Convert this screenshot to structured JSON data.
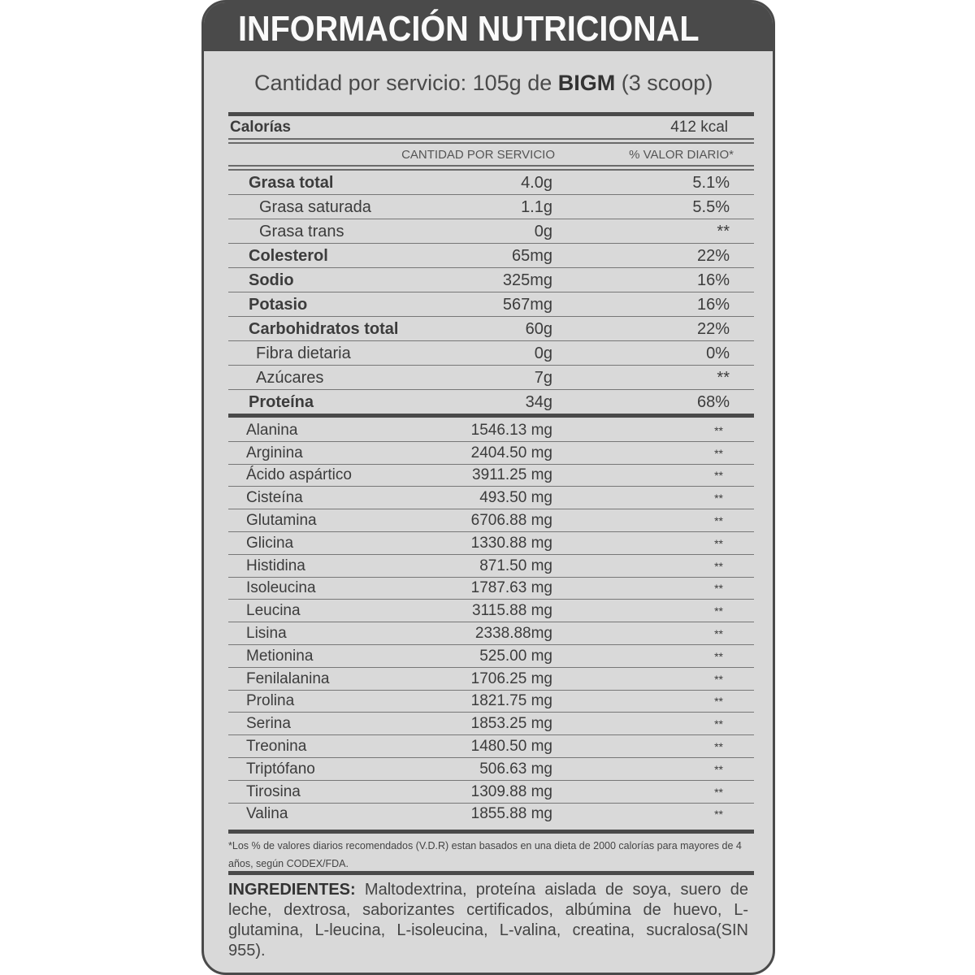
{
  "title": "INFORMACIÓN NUTRICIONAL",
  "serving": {
    "prefix": "Cantidad por servicio: 105g de",
    "brand": "BIGM",
    "suffix": "(3 scoop)"
  },
  "calories": {
    "label": "Calorías",
    "value": "412 kcal"
  },
  "columns": {
    "amount": "CANTIDAD POR SERVICIO",
    "dv": "% VALOR DIARIO*"
  },
  "nutrients": [
    {
      "name": "Grasa total",
      "amount": "4.0g",
      "dv": "5.1%",
      "bold": true,
      "indent": 0
    },
    {
      "name": "Grasa saturada",
      "amount": "1.1g",
      "dv": "5.5%",
      "bold": false,
      "indent": 1
    },
    {
      "name": "Grasa trans",
      "amount": "0g",
      "dv": "**",
      "bold": false,
      "indent": 1
    },
    {
      "name": "Colesterol",
      "amount": "65mg",
      "dv": "22%",
      "bold": true,
      "indent": 0
    },
    {
      "name": "Sodio",
      "amount": "325mg",
      "dv": "16%",
      "bold": true,
      "indent": 0
    },
    {
      "name": "Potasio",
      "amount": "567mg",
      "dv": "16%",
      "bold": true,
      "indent": 0
    },
    {
      "name": "Carbohidratos total",
      "amount": "60g",
      "dv": "22%",
      "bold": true,
      "indent": 0
    },
    {
      "name": "Fibra dietaria",
      "amount": "0g",
      "dv": "0%",
      "bold": false,
      "indent": 2
    },
    {
      "name": "Azúcares",
      "amount": "7g",
      "dv": "**",
      "bold": false,
      "indent": 2
    },
    {
      "name": "Proteína",
      "amount": "34g",
      "dv": "68%",
      "bold": true,
      "indent": 0
    }
  ],
  "amino_acids": [
    {
      "name": "Alanina",
      "amount": "1546.13 mg",
      "dv": "**"
    },
    {
      "name": "Arginina",
      "amount": "2404.50 mg",
      "dv": "**"
    },
    {
      "name": "Ácido aspártico",
      "amount": "3911.25 mg",
      "dv": "**"
    },
    {
      "name": "Cisteína",
      "amount": "493.50 mg",
      "dv": "**"
    },
    {
      "name": "Glutamina",
      "amount": "6706.88 mg",
      "dv": "**"
    },
    {
      "name": "Glicina",
      "amount": "1330.88 mg",
      "dv": "**"
    },
    {
      "name": "Histidina",
      "amount": "871.50 mg",
      "dv": "**"
    },
    {
      "name": "Isoleucina",
      "amount": "1787.63 mg",
      "dv": "**"
    },
    {
      "name": "Leucina",
      "amount": "3115.88 mg",
      "dv": "**"
    },
    {
      "name": "Lisina",
      "amount": "2338.88mg",
      "dv": "**"
    },
    {
      "name": "Metionina",
      "amount": "525.00 mg",
      "dv": "**"
    },
    {
      "name": "Fenilalanina",
      "amount": "1706.25 mg",
      "dv": "**"
    },
    {
      "name": "Prolina",
      "amount": "1821.75 mg",
      "dv": "**"
    },
    {
      "name": "Serina",
      "amount": "1853.25 mg",
      "dv": "**"
    },
    {
      "name": "Treonina",
      "amount": "1480.50 mg",
      "dv": "**"
    },
    {
      "name": "Triptófano",
      "amount": "506.63 mg",
      "dv": "**"
    },
    {
      "name": "Tirosina",
      "amount": "1309.88 mg",
      "dv": "**"
    },
    {
      "name": "Valina",
      "amount": "1855.88 mg",
      "dv": "**"
    }
  ],
  "footnote": "*Los % de valores diarios recomendados (V.D.R) estan basados en una dieta de 2000 calorías para mayores de 4 años, según CODEX/FDA.",
  "ingredients": {
    "label": "INGREDIENTES:",
    "text": " Maltodextrina, proteína aislada de soya, suero de leche, dextrosa, saborizantes certificados, albúmina de huevo, L-glutamina, L-leucina, L-isoleucina, L-valina, creatina, sucralosa(SIN 955)."
  },
  "colors": {
    "header": "#4a4a4a",
    "panel": "#d9d9d9",
    "text": "#3c3c3c"
  }
}
